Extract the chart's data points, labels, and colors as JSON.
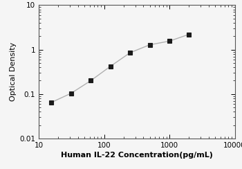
{
  "x_values": [
    15.625,
    31.25,
    62.5,
    125,
    250,
    500,
    1000,
    2000
  ],
  "y_values": [
    0.065,
    0.104,
    0.2,
    0.42,
    0.85,
    1.28,
    1.55,
    2.2
  ],
  "xlabel": "Human IL-22 Concentration(pg/mL)",
  "ylabel": "Optical Density",
  "xlim": [
    10,
    10000
  ],
  "ylim": [
    0.01,
    10
  ],
  "line_color": "#b0b0b0",
  "marker_color": "#1a1a1a",
  "marker_style": "s",
  "marker_size": 4,
  "line_width": 1.0,
  "xlabel_fontsize": 8,
  "ylabel_fontsize": 8,
  "tick_fontsize": 7.5,
  "background_color": "#f5f5f5"
}
